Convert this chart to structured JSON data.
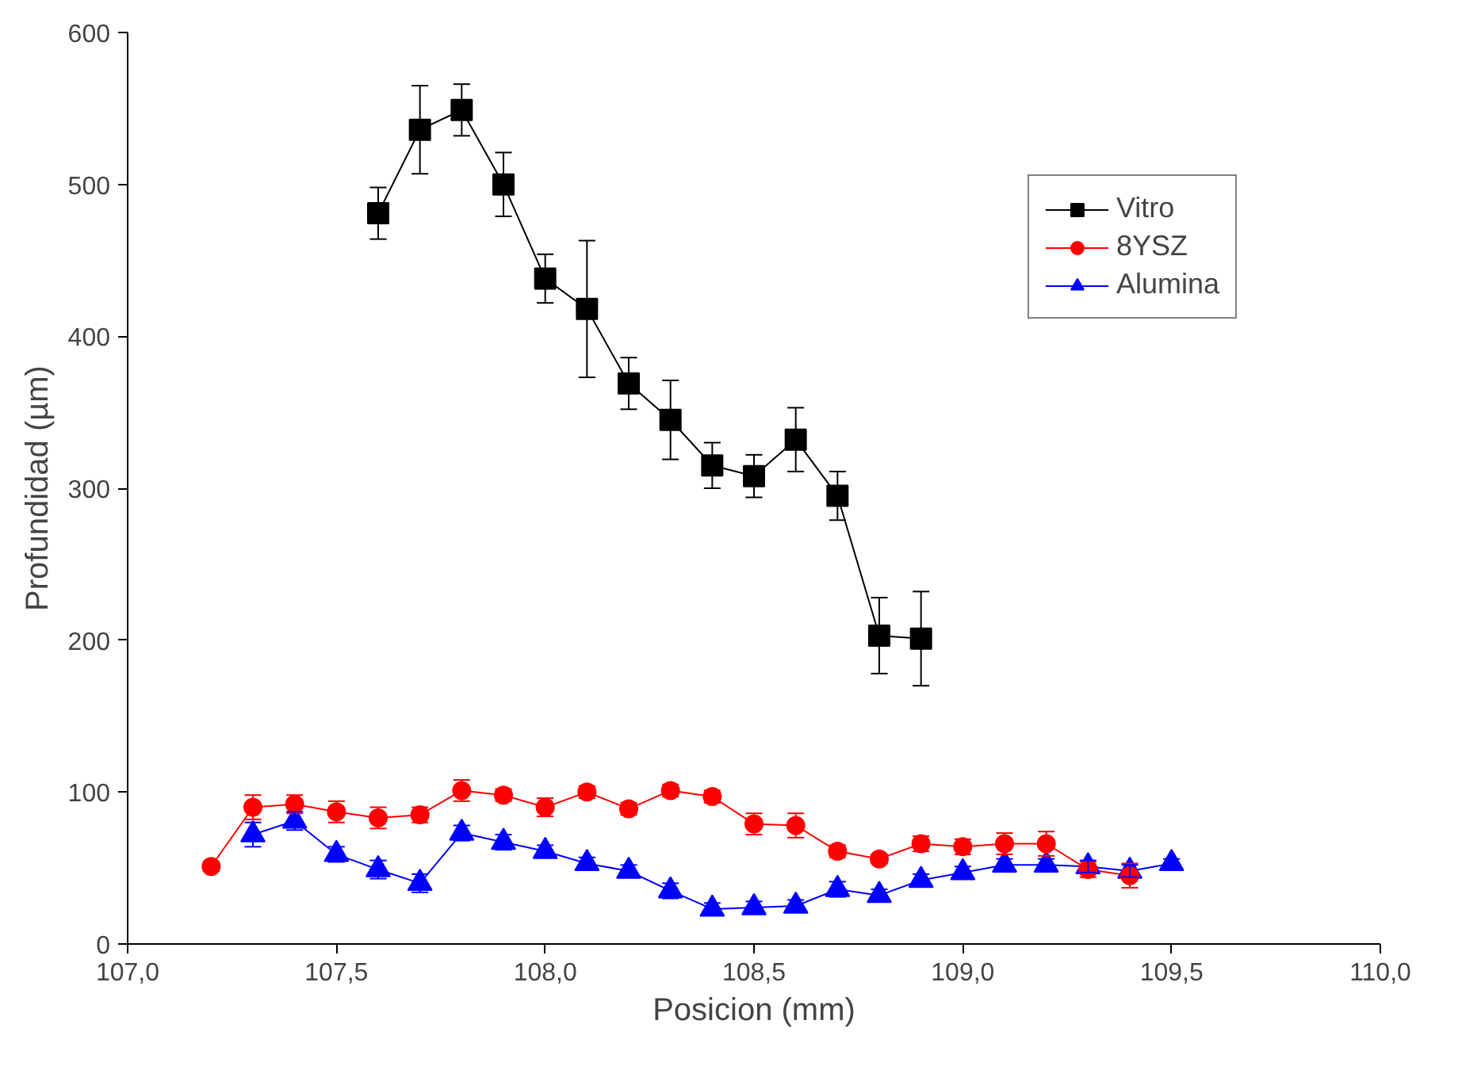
{
  "chart_data": {
    "type": "line",
    "xlabel": "Posicion (mm)",
    "ylabel": "Profundidad (µm)",
    "xlim": [
      107,
      110
    ],
    "ylim": [
      0,
      600
    ],
    "xticks": [
      {
        "value": 107,
        "label": "107,0"
      },
      {
        "value": 107.5,
        "label": "107,5"
      },
      {
        "value": 108,
        "label": "108,0"
      },
      {
        "value": 108.5,
        "label": "108,5"
      },
      {
        "value": 109,
        "label": "109,0"
      },
      {
        "value": 109.5,
        "label": "109,5"
      },
      {
        "value": 110,
        "label": "110,0"
      }
    ],
    "yticks": [
      0,
      100,
      200,
      300,
      400,
      500,
      600
    ],
    "grid": false,
    "legend": "top right",
    "series": [
      {
        "name": "Vitro",
        "color": "#000000",
        "marker": "square",
        "x": [
          107.6,
          107.7,
          107.8,
          107.9,
          108.0,
          108.1,
          108.2,
          108.3,
          108.4,
          108.5,
          108.6,
          108.7,
          108.8,
          108.9
        ],
        "values": [
          481,
          536,
          549,
          500,
          438,
          418,
          369,
          345,
          315,
          308,
          332,
          295,
          203,
          201
        ],
        "errors": [
          17,
          29,
          17,
          21,
          16,
          45,
          17,
          26,
          15,
          14,
          21,
          16,
          25,
          31
        ]
      },
      {
        "name": "8YSZ",
        "color": "#ff0000",
        "marker": "circle",
        "x": [
          107.2,
          107.3,
          107.4,
          107.5,
          107.6,
          107.7,
          107.8,
          107.9,
          108.0,
          108.1,
          108.2,
          108.3,
          108.4,
          108.5,
          108.6,
          108.7,
          108.8,
          108.9,
          109.0,
          109.1,
          109.2,
          109.3,
          109.4
        ],
        "values": [
          51,
          90,
          92,
          87,
          83,
          85,
          101,
          98,
          90,
          100,
          89,
          101,
          97,
          79,
          78,
          61,
          56,
          66,
          64,
          66,
          66,
          49,
          45
        ],
        "errors": [
          3,
          8,
          6,
          7,
          7,
          5,
          7,
          4,
          6,
          4,
          4,
          4,
          4,
          7,
          8,
          4,
          3,
          5,
          5,
          7,
          8,
          5,
          8
        ]
      },
      {
        "name": "Alumina",
        "color": "#0000ff",
        "marker": "triangle",
        "x": [
          107.3,
          107.4,
          107.5,
          107.6,
          107.7,
          107.8,
          107.9,
          108.0,
          108.1,
          108.2,
          108.3,
          108.4,
          108.5,
          108.6,
          108.7,
          108.8,
          108.9,
          109.0,
          109.1,
          109.2,
          109.3,
          109.4,
          109.5
        ],
        "values": [
          72,
          81,
          59,
          49,
          40,
          73,
          67,
          61,
          53,
          48,
          35,
          23,
          24,
          25,
          36,
          32,
          42,
          47,
          52,
          52,
          51,
          48,
          53
        ],
        "errors": [
          8,
          6,
          5,
          6,
          6,
          5,
          5,
          4,
          4,
          4,
          5,
          4,
          4,
          4,
          5,
          4,
          4,
          4,
          4,
          4,
          4,
          4,
          3
        ]
      }
    ]
  }
}
